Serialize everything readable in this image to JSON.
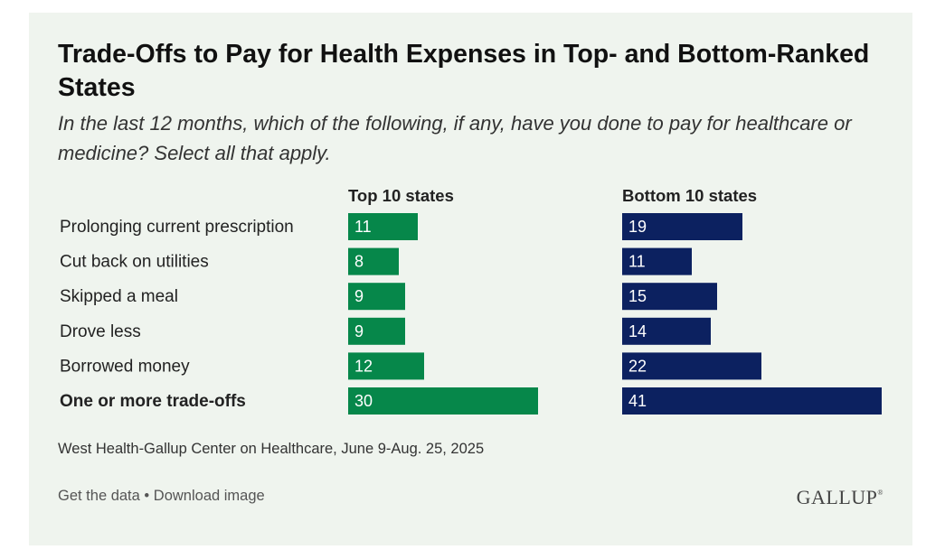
{
  "title": "Trade-Offs to Pay for Health Expenses in Top- and Bottom-Ranked States",
  "subtitle": "In the last 12 months, which of the following, if any, have you done to pay for healthcare or medicine? Select all that apply.",
  "source": "West Health-Gallup Center on Healthcare, June 9-Aug. 25, 2025",
  "footer": {
    "get_data": "Get the data",
    "separator": "•",
    "download": "Download image"
  },
  "logo": "GALLUP",
  "colors": {
    "top": "#06874a",
    "bottom": "#0c2160",
    "background": "#eff4ee"
  },
  "chart_data": {
    "type": "bar",
    "orientation": "horizontal",
    "categories": [
      "Prolonging current prescription",
      "Cut back on utilities",
      "Skipped a meal",
      "Drove less",
      "Borrowed money",
      "One or more trade-offs"
    ],
    "bold_categories": [
      "One or more trade-offs"
    ],
    "series": [
      {
        "name": "Top 10 states",
        "values": [
          11,
          8,
          9,
          9,
          12,
          30
        ]
      },
      {
        "name": "Bottom 10 states",
        "values": [
          19,
          11,
          15,
          14,
          22,
          41
        ]
      }
    ],
    "data_labels": true
  }
}
